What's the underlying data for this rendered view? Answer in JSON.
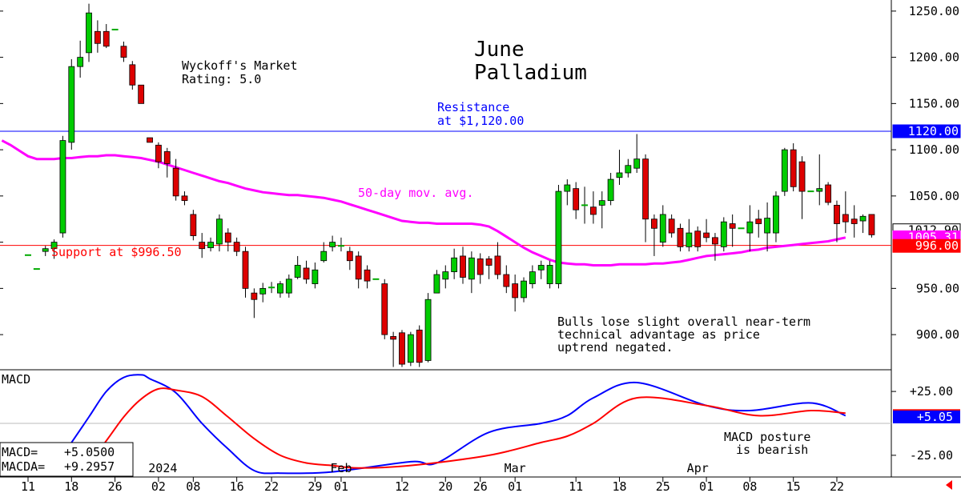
{
  "chart_data": [
    {
      "type": "candlestick",
      "title_line1": "June",
      "title_line2": "Palladium",
      "rating_line1": "Wyckoff's Market",
      "rating_line2": "Rating: 5.0",
      "resistance_text_line1": "Resistance",
      "resistance_text_line2": "at $1,120.00",
      "support_text": "Support at $996.50",
      "ma_label": "50-day mov. avg.",
      "comment_line1": "Bulls lose slight overall near-term",
      "comment_line2": "technical advantage as price",
      "comment_line3": "uptrend negated.",
      "ylim": [
        862,
        1262
      ],
      "y_ticks": [
        1250,
        1200,
        1150,
        1100,
        1050,
        950,
        900
      ],
      "y_tick_labels": [
        "1250.00",
        "1200.00",
        "1150.00",
        "1100.00",
        "1050.00",
        "950.00",
        "900.00"
      ],
      "resistance": 1120,
      "support": 996.5,
      "price_flags": [
        {
          "label": "1120.00",
          "value": 1120,
          "bg": "#0000ff",
          "fg": "#ffffff"
        },
        {
          "label": "1012.90",
          "value": 1012.9,
          "bg": "#ffffff",
          "fg": "#000000"
        },
        {
          "label": "1005.31",
          "value": 1005.31,
          "bg": "#ff00ff",
          "fg": "#ffffff"
        },
        {
          "label": "996.00",
          "value": 996,
          "bg": "#ff0000",
          "fg": "#ffffff"
        }
      ],
      "candles": [
        {
          "o": 986,
          "h": 986,
          "l": 986,
          "c": 986
        },
        {
          "o": 971,
          "h": 971,
          "l": 971,
          "c": 971
        },
        {
          "o": 990,
          "h": 996,
          "l": 985,
          "c": 993
        },
        {
          "o": 993,
          "h": 1003,
          "l": 982,
          "c": 1000
        },
        {
          "o": 1010,
          "h": 1115,
          "l": 1005,
          "c": 1110
        },
        {
          "o": 1108,
          "h": 1198,
          "l": 1100,
          "c": 1190
        },
        {
          "o": 1190,
          "h": 1218,
          "l": 1178,
          "c": 1200
        },
        {
          "o": 1205,
          "h": 1258,
          "l": 1195,
          "c": 1248
        },
        {
          "o": 1228,
          "h": 1240,
          "l": 1205,
          "c": 1215
        },
        {
          "o": 1228,
          "h": 1236,
          "l": 1210,
          "c": 1212
        },
        {
          "o": 1230,
          "h": 1230,
          "l": 1230,
          "c": 1230
        },
        {
          "o": 1212,
          "h": 1217,
          "l": 1195,
          "c": 1200
        },
        {
          "o": 1192,
          "h": 1196,
          "l": 1165,
          "c": 1170
        },
        {
          "o": 1170,
          "h": 1170,
          "l": 1150,
          "c": 1150
        },
        {
          "o": 1113,
          "h": 1113,
          "l": 1108,
          "c": 1108
        },
        {
          "o": 1105,
          "h": 1108,
          "l": 1080,
          "c": 1087
        },
        {
          "o": 1098,
          "h": 1102,
          "l": 1070,
          "c": 1085
        },
        {
          "o": 1080,
          "h": 1090,
          "l": 1045,
          "c": 1050
        },
        {
          "o": 1050,
          "h": 1055,
          "l": 1040,
          "c": 1045
        },
        {
          "o": 1030,
          "h": 1035,
          "l": 1002,
          "c": 1007
        },
        {
          "o": 1000,
          "h": 1010,
          "l": 983,
          "c": 993
        },
        {
          "o": 994,
          "h": 1005,
          "l": 990,
          "c": 1000
        },
        {
          "o": 998,
          "h": 1030,
          "l": 990,
          "c": 1025
        },
        {
          "o": 1010,
          "h": 1015,
          "l": 990,
          "c": 1000
        },
        {
          "o": 1000,
          "h": 1005,
          "l": 985,
          "c": 990
        },
        {
          "o": 990,
          "h": 995,
          "l": 940,
          "c": 950
        },
        {
          "o": 945,
          "h": 950,
          "l": 918,
          "c": 938
        },
        {
          "o": 944,
          "h": 956,
          "l": 935,
          "c": 950
        },
        {
          "o": 951,
          "h": 957,
          "l": 945,
          "c": 951
        },
        {
          "o": 945,
          "h": 958,
          "l": 940,
          "c": 955
        },
        {
          "o": 945,
          "h": 965,
          "l": 940,
          "c": 960
        },
        {
          "o": 962,
          "h": 985,
          "l": 960,
          "c": 975
        },
        {
          "o": 972,
          "h": 980,
          "l": 955,
          "c": 960
        },
        {
          "o": 955,
          "h": 978,
          "l": 950,
          "c": 970
        },
        {
          "o": 980,
          "h": 1000,
          "l": 978,
          "c": 990
        },
        {
          "o": 995,
          "h": 1007,
          "l": 990,
          "c": 1000
        },
        {
          "o": 996,
          "h": 1005,
          "l": 990,
          "c": 996
        },
        {
          "o": 990,
          "h": 995,
          "l": 970,
          "c": 980
        },
        {
          "o": 985,
          "h": 990,
          "l": 950,
          "c": 960
        },
        {
          "o": 970,
          "h": 975,
          "l": 950,
          "c": 958
        },
        {
          "o": 960,
          "h": 960,
          "l": 960,
          "c": 960
        },
        {
          "o": 955,
          "h": 960,
          "l": 895,
          "c": 900
        },
        {
          "o": 898,
          "h": 903,
          "l": 865,
          "c": 895
        },
        {
          "o": 902,
          "h": 905,
          "l": 865,
          "c": 868
        },
        {
          "o": 870,
          "h": 903,
          "l": 866,
          "c": 900
        },
        {
          "o": 905,
          "h": 910,
          "l": 865,
          "c": 870
        },
        {
          "o": 872,
          "h": 945,
          "l": 870,
          "c": 938
        },
        {
          "o": 945,
          "h": 970,
          "l": 945,
          "c": 965
        },
        {
          "o": 960,
          "h": 975,
          "l": 950,
          "c": 968
        },
        {
          "o": 968,
          "h": 993,
          "l": 960,
          "c": 983
        },
        {
          "o": 985,
          "h": 995,
          "l": 955,
          "c": 962
        },
        {
          "o": 960,
          "h": 990,
          "l": 945,
          "c": 983
        },
        {
          "o": 982,
          "h": 988,
          "l": 955,
          "c": 965
        },
        {
          "o": 982,
          "h": 985,
          "l": 960,
          "c": 975
        },
        {
          "o": 985,
          "h": 1000,
          "l": 960,
          "c": 965
        },
        {
          "o": 965,
          "h": 975,
          "l": 945,
          "c": 952
        },
        {
          "o": 955,
          "h": 965,
          "l": 925,
          "c": 940
        },
        {
          "o": 940,
          "h": 962,
          "l": 935,
          "c": 958
        },
        {
          "o": 955,
          "h": 975,
          "l": 950,
          "c": 968
        },
        {
          "o": 970,
          "h": 980,
          "l": 960,
          "c": 975
        },
        {
          "o": 955,
          "h": 980,
          "l": 950,
          "c": 975
        },
        {
          "o": 955,
          "h": 1062,
          "l": 950,
          "c": 1055
        },
        {
          "o": 1055,
          "h": 1068,
          "l": 1040,
          "c": 1062
        },
        {
          "o": 1058,
          "h": 1065,
          "l": 1025,
          "c": 1035
        },
        {
          "o": 1040,
          "h": 1060,
          "l": 1020,
          "c": 1040
        },
        {
          "o": 1038,
          "h": 1055,
          "l": 1020,
          "c": 1030
        },
        {
          "o": 1040,
          "h": 1055,
          "l": 1015,
          "c": 1045
        },
        {
          "o": 1045,
          "h": 1075,
          "l": 1040,
          "c": 1068
        },
        {
          "o": 1070,
          "h": 1100,
          "l": 1062,
          "c": 1075
        },
        {
          "o": 1075,
          "h": 1090,
          "l": 1070,
          "c": 1083
        },
        {
          "o": 1080,
          "h": 1117,
          "l": 1075,
          "c": 1090
        },
        {
          "o": 1090,
          "h": 1095,
          "l": 1000,
          "c": 1025
        },
        {
          "o": 1025,
          "h": 1030,
          "l": 985,
          "c": 1015
        },
        {
          "o": 1000,
          "h": 1040,
          "l": 995,
          "c": 1030
        },
        {
          "o": 1025,
          "h": 1030,
          "l": 1005,
          "c": 1010
        },
        {
          "o": 1015,
          "h": 1020,
          "l": 990,
          "c": 995
        },
        {
          "o": 995,
          "h": 1025,
          "l": 990,
          "c": 1010
        },
        {
          "o": 1012,
          "h": 1017,
          "l": 990,
          "c": 995
        },
        {
          "o": 1010,
          "h": 1025,
          "l": 1000,
          "c": 1005
        },
        {
          "o": 1005,
          "h": 1010,
          "l": 980,
          "c": 998
        },
        {
          "o": 995,
          "h": 1027,
          "l": 990,
          "c": 1022
        },
        {
          "o": 1020,
          "h": 1030,
          "l": 995,
          "c": 1015
        },
        {
          "o": 1015,
          "h": 1015,
          "l": 1015,
          "c": 1015
        },
        {
          "o": 1010,
          "h": 1040,
          "l": 990,
          "c": 1022
        },
        {
          "o": 1025,
          "h": 1035,
          "l": 1005,
          "c": 1020
        },
        {
          "o": 1010,
          "h": 1043,
          "l": 990,
          "c": 1026
        },
        {
          "o": 1010,
          "h": 1055,
          "l": 1000,
          "c": 1050
        },
        {
          "o": 1055,
          "h": 1102,
          "l": 1050,
          "c": 1100
        },
        {
          "o": 1100,
          "h": 1107,
          "l": 1055,
          "c": 1060
        },
        {
          "o": 1087,
          "h": 1093,
          "l": 1025,
          "c": 1055
        },
        {
          "o": 1055,
          "h": 1055,
          "l": 1055,
          "c": 1055
        },
        {
          "o": 1055,
          "h": 1095,
          "l": 1040,
          "c": 1058
        },
        {
          "o": 1062,
          "h": 1065,
          "l": 1040,
          "c": 1043
        },
        {
          "o": 1040,
          "h": 1045,
          "l": 1000,
          "c": 1020
        },
        {
          "o": 1030,
          "h": 1055,
          "l": 1010,
          "c": 1022
        },
        {
          "o": 1025,
          "h": 1040,
          "l": 1005,
          "c": 1020
        },
        {
          "o": 1023,
          "h": 1030,
          "l": 1010,
          "c": 1028
        },
        {
          "o": 1030,
          "h": 1030,
          "l": 1005,
          "c": 1008
        }
      ],
      "moving_average": [
        1110,
        1105,
        1099,
        1093,
        1090,
        1090,
        1090,
        1091,
        1091,
        1092,
        1093,
        1093,
        1094,
        1094,
        1093,
        1092,
        1091,
        1089,
        1087,
        1084,
        1081,
        1078,
        1075,
        1072,
        1069,
        1066,
        1064,
        1061,
        1058,
        1056,
        1054,
        1053,
        1052,
        1051,
        1051,
        1050,
        1049,
        1048,
        1046,
        1044,
        1041,
        1038,
        1035,
        1032,
        1029,
        1026,
        1023,
        1022,
        1021,
        1021,
        1020,
        1020,
        1020,
        1020,
        1020,
        1019,
        1017,
        1012,
        1006,
        1000,
        994,
        989,
        985,
        981,
        978,
        977,
        976,
        976,
        975,
        975,
        975,
        976,
        976,
        976,
        976,
        977,
        977,
        978,
        979,
        981,
        983,
        985,
        986,
        987,
        988,
        989,
        991,
        992,
        994,
        995,
        996,
        997,
        998,
        999,
        1000,
        1001,
        1003,
        1005
      ],
      "x_tick_labels": [
        "11",
        "18",
        "26",
        "02",
        "08",
        "16",
        "22",
        "29",
        "01",
        "12",
        "20",
        "26",
        "01",
        "11",
        "18",
        "25",
        "01",
        "08",
        "15",
        "22"
      ],
      "x_tick_index": [
        0,
        5,
        10,
        15,
        19,
        24,
        28,
        33,
        36,
        43,
        48,
        52,
        56,
        63,
        68,
        73,
        78,
        83,
        88,
        93
      ],
      "month_labels": [
        {
          "label": "2024",
          "index": 15.5
        },
        {
          "label": "Feb",
          "index": 36
        },
        {
          "label": "Mar",
          "index": 56
        },
        {
          "label": "Apr",
          "index": 77
        }
      ]
    },
    {
      "type": "line",
      "title": "MACD",
      "ylim": [
        -42,
        42
      ],
      "y_ticks": [
        25,
        -25
      ],
      "y_tick_labels": [
        "+25.00",
        "-25.00"
      ],
      "flags": [
        {
          "label": "+6.06",
          "value": 6.06,
          "bg": "#ff0000",
          "fg": "#ffffff"
        },
        {
          "label": "+5.05",
          "value": 5.05,
          "bg": "#0000ff",
          "fg": "#ffffff"
        }
      ],
      "macd_readout_label": "MACD=",
      "macd_readout_value": "+5.0500",
      "macda_readout_label": "MACDA=",
      "macda_readout_value": "+9.2957",
      "annotation_line1": "MACD posture",
      "annotation_line2": "is bearish",
      "series": [
        {
          "name": "MACD",
          "color": "#0000ff",
          "x": [
            5,
            7,
            9,
            11,
            13,
            14,
            17,
            20,
            23,
            26,
            29,
            35,
            44,
            47,
            53,
            59,
            62,
            65,
            70,
            78,
            83,
            90,
            94
          ],
          "values": [
            -15,
            5,
            25,
            36,
            38,
            35,
            24,
            0,
            -20,
            -37,
            -39,
            -38,
            -30,
            -31,
            -7,
            0,
            6,
            20,
            32,
            14,
            10,
            16,
            6
          ]
        },
        {
          "name": "MACDA",
          "color": "#ff0000",
          "x": [
            5,
            8,
            11,
            13,
            15,
            17,
            20,
            23,
            26,
            29,
            32,
            35,
            38,
            44,
            53,
            59,
            62,
            65,
            70,
            78,
            84,
            90,
            94
          ],
          "values": [
            -37,
            -22,
            5,
            19,
            27,
            26,
            21,
            5,
            -12,
            -25,
            -31,
            -33,
            -35,
            -33,
            -25,
            -15,
            -10,
            0,
            20,
            14,
            6,
            10,
            8
          ]
        }
      ]
    }
  ]
}
